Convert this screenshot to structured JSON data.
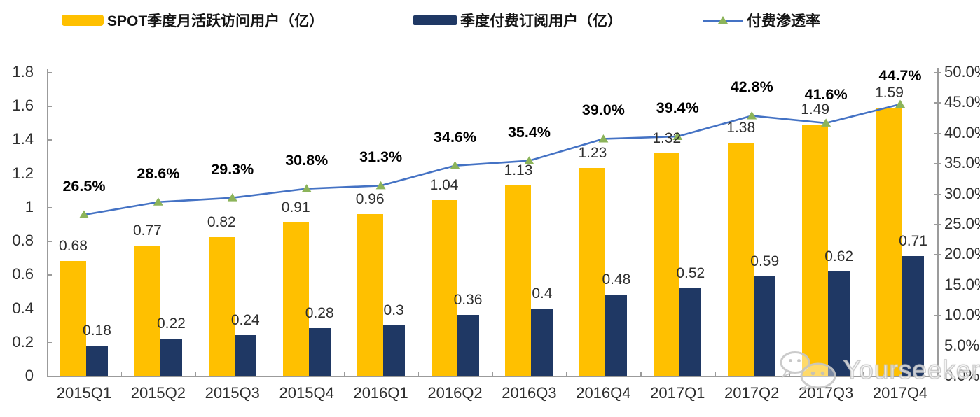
{
  "chart_data": {
    "type": "combo",
    "categories": [
      "2015Q1",
      "2015Q2",
      "2015Q3",
      "2015Q4",
      "2016Q1",
      "2016Q2",
      "2016Q3",
      "2016Q4",
      "2017Q1",
      "2017Q2",
      "2017Q3",
      "2017Q4"
    ],
    "series": [
      {
        "name": "SPOT季度月活跃访问用户（亿）",
        "type": "bar",
        "axis": "left",
        "color": "#FFC000",
        "values": [
          0.68,
          0.77,
          0.82,
          0.91,
          0.96,
          1.04,
          1.13,
          1.23,
          1.32,
          1.38,
          1.49,
          1.59
        ],
        "labels": [
          "0.68",
          "0.77",
          "0.82",
          "0.91",
          "0.96",
          "1.04",
          "1.13",
          "1.23",
          "1.32",
          "1.38",
          "1.49",
          "1.59"
        ]
      },
      {
        "name": "季度付费订阅用户（亿）",
        "type": "bar",
        "axis": "left",
        "color": "#1F3864",
        "values": [
          0.18,
          0.22,
          0.24,
          0.28,
          0.3,
          0.36,
          0.4,
          0.48,
          0.52,
          0.59,
          0.62,
          0.71
        ],
        "labels": [
          "0.18",
          "0.22",
          "0.24",
          "0.28",
          "0.3",
          "0.36",
          "0.4",
          "0.48",
          "0.52",
          "0.59",
          "0.62",
          "0.71"
        ]
      },
      {
        "name": "付费渗透率",
        "type": "line",
        "axis": "right",
        "color": "#4472C4",
        "marker_color": "#8CB45A",
        "values": [
          26.5,
          28.6,
          29.3,
          30.8,
          31.3,
          34.6,
          35.4,
          39.0,
          39.4,
          42.8,
          41.6,
          44.7
        ],
        "labels": [
          "26.5%",
          "28.6%",
          "29.3%",
          "30.8%",
          "31.3%",
          "34.6%",
          "35.4%",
          "39.0%",
          "39.4%",
          "42.8%",
          "41.6%",
          "44.7%"
        ]
      }
    ],
    "left_axis": {
      "min": 0,
      "max": 1.8,
      "ticks": [
        "0",
        "0.2",
        "0.4",
        "0.6",
        "0.8",
        "1",
        "1.2",
        "1.4",
        "1.6",
        "1.8"
      ]
    },
    "right_axis": {
      "min": 0,
      "max": 50,
      "ticks": [
        "0.0%",
        "5.0%",
        "10.0%",
        "15.0%",
        "20.0%",
        "25.0%",
        "30.0%",
        "35.0%",
        "40.0%",
        "45.0%",
        "50.0%"
      ]
    },
    "grid": false,
    "legend_position": "top"
  },
  "watermark": {
    "text": "Yourseeker",
    "icon": "wechat-icon"
  }
}
